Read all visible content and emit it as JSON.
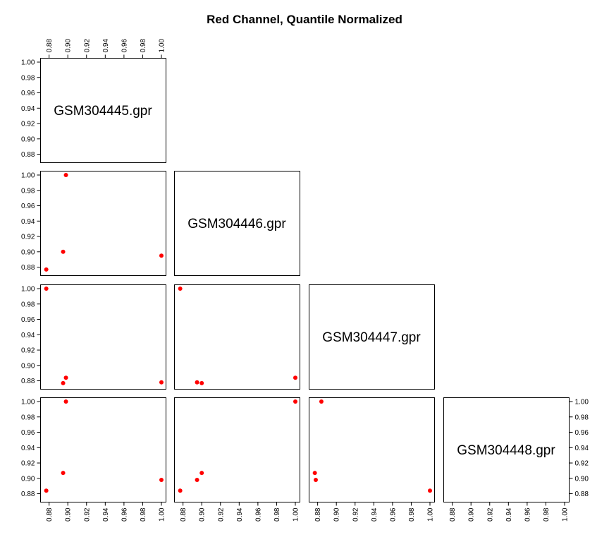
{
  "chart_data": {
    "type": "scatter",
    "title": "Red Channel, Quantile Normalized",
    "variables": [
      "GSM304445.gpr",
      "GSM304446.gpr",
      "GSM304447.gpr",
      "GSM304448.gpr"
    ],
    "axis_range": [
      0.875,
      1.0
    ],
    "ticks": [
      0.88,
      0.9,
      0.92,
      0.94,
      0.96,
      0.98,
      1.0
    ],
    "tick_labels": [
      "0.88",
      "0.90",
      "0.92",
      "0.94",
      "0.96",
      "0.98",
      "1.00"
    ],
    "point_color": "#ff0000",
    "grid": false,
    "values": {
      "GSM304445.gpr": [
        0.877,
        0.895,
        0.898,
        1.0
      ],
      "GSM304446.gpr": [
        0.877,
        0.9,
        1.0,
        0.895
      ],
      "GSM304447.gpr": [
        1.0,
        0.877,
        0.884,
        0.878
      ],
      "GSM304448.gpr": [
        0.884,
        0.907,
        1.0,
        0.898
      ]
    },
    "panels": [
      {
        "row": 2,
        "col": 1,
        "x": "GSM304445.gpr",
        "y": "GSM304446.gpr"
      },
      {
        "row": 3,
        "col": 1,
        "x": "GSM304445.gpr",
        "y": "GSM304447.gpr"
      },
      {
        "row": 3,
        "col": 2,
        "x": "GSM304446.gpr",
        "y": "GSM304447.gpr"
      },
      {
        "row": 4,
        "col": 1,
        "x": "GSM304445.gpr",
        "y": "GSM304448.gpr"
      },
      {
        "row": 4,
        "col": 2,
        "x": "GSM304446.gpr",
        "y": "GSM304448.gpr"
      },
      {
        "row": 4,
        "col": 3,
        "x": "GSM304447.gpr",
        "y": "GSM304448.gpr"
      }
    ]
  }
}
